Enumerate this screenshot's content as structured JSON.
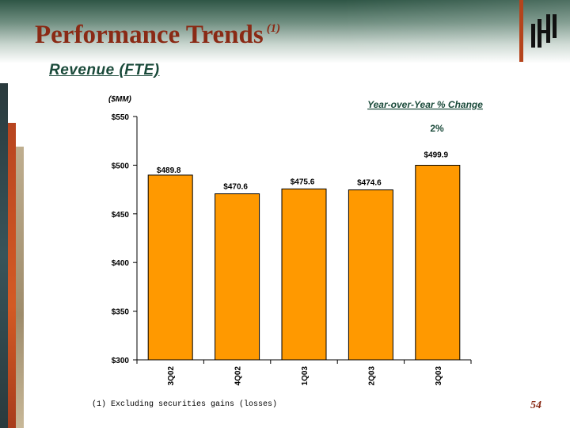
{
  "header": {
    "title": "Performance Trends",
    "footnote_marker": "(1)",
    "subtitle": "Revenue (FTE)"
  },
  "footer": {
    "footnote": "(1) Excluding securities gains (losses)",
    "page_number": "54"
  },
  "colors": {
    "bar": "#ff9900",
    "title": "#8a2a15",
    "accent_line": "#b5441c"
  },
  "chart_data": {
    "type": "bar",
    "unit_label": "($MM)",
    "categories": [
      "3Q02",
      "4Q02",
      "1Q03",
      "2Q03",
      "3Q03"
    ],
    "values": [
      489.8,
      470.6,
      475.6,
      474.6,
      499.9
    ],
    "value_labels": [
      "$489.8",
      "$470.6",
      "$475.6",
      "$474.6",
      "$499.9"
    ],
    "ylim": [
      300,
      550
    ],
    "yticks": [
      300,
      350,
      400,
      450,
      500,
      550
    ],
    "ytick_labels": [
      "$300",
      "$350",
      "$400",
      "$450",
      "$500",
      "$550"
    ],
    "annotation": {
      "heading": "Year-over-Year % Change",
      "value": "2%"
    }
  }
}
